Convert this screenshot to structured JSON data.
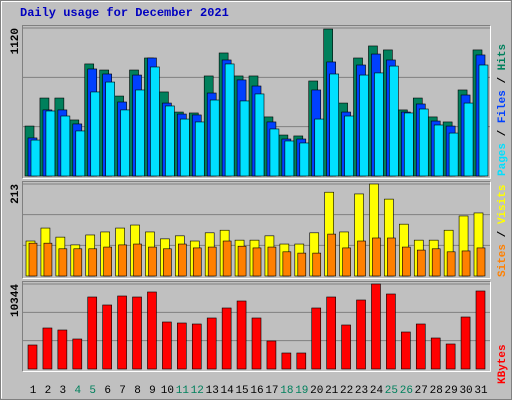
{
  "title": "Daily usage for December 2021",
  "legend_separator": " / ",
  "chart_data": [
    {
      "type": "bar",
      "ylim": [
        0,
        1120
      ],
      "yticks": [
        1120
      ],
      "grid": true,
      "series": [
        {
          "name": "Hits",
          "color": "#00805c",
          "values": [
            378,
            590,
            590,
            424,
            848,
            802,
            605,
            802,
            893,
            636,
            484,
            477,
            757,
            931,
            757,
            757,
            447,
            310,
            303,
            719,
            1112,
            552,
            893,
            984,
            954,
            500,
            590,
            447,
            409,
            651,
            954
          ]
        },
        {
          "name": "Files",
          "color": "#0040ff",
          "values": [
            288,
            500,
            500,
            394,
            810,
            772,
            560,
            764,
            893,
            552,
            469,
            462,
            628,
            878,
            727,
            681,
            409,
            280,
            280,
            651,
            863,
            484,
            840,
            923,
            878,
            484,
            545,
            416,
            378,
            613,
            916
          ]
        },
        {
          "name": "Pages",
          "color": "#00e0ff",
          "values": [
            272,
            492,
            454,
            341,
            636,
            711,
            500,
            651,
            825,
            530,
            431,
            409,
            575,
            848,
            568,
            621,
            356,
            265,
            250,
            431,
            772,
            454,
            764,
            780,
            832,
            477,
            507,
            386,
            325,
            552,
            840
          ]
        }
      ]
    },
    {
      "type": "bar",
      "ylim": [
        0,
        213
      ],
      "yticks": [
        213
      ],
      "grid": true,
      "series": [
        {
          "name": "Visits",
          "color": "#ffff00",
          "values": [
            81,
            111,
            90,
            72,
            95,
            102,
            111,
            118,
            102,
            86,
            93,
            81,
            100,
            106,
            83,
            83,
            93,
            74,
            74,
            100,
            194,
            102,
            190,
            213,
            178,
            120,
            83,
            83,
            106,
            139,
            146
          ]
        },
        {
          "name": "Sites",
          "color": "#ff8000",
          "values": [
            76,
            76,
            63,
            63,
            63,
            67,
            72,
            74,
            67,
            63,
            74,
            65,
            67,
            81,
            69,
            65,
            67,
            56,
            53,
            53,
            97,
            65,
            81,
            88,
            88,
            67,
            60,
            63,
            56,
            58,
            65
          ]
        }
      ]
    },
    {
      "type": "bar",
      "ylim": [
        0,
        10344
      ],
      "yticks": [
        10344
      ],
      "grid": true,
      "categories": [
        "1",
        "2",
        "3",
        "4",
        "5",
        "6",
        "7",
        "8",
        "9",
        "10",
        "11",
        "12",
        "13",
        "14",
        "15",
        "16",
        "17",
        "18",
        "19",
        "20",
        "21",
        "22",
        "23",
        "24",
        "25",
        "26",
        "27",
        "28",
        "29",
        "30",
        "31"
      ],
      "category_colors": [
        "#000000",
        "#000000",
        "#000000",
        "#00805c",
        "#00805c",
        "#000000",
        "#000000",
        "#000000",
        "#000000",
        "#000000",
        "#00805c",
        "#00805c",
        "#000000",
        "#000000",
        "#000000",
        "#000000",
        "#000000",
        "#00805c",
        "#00805c",
        "#000000",
        "#000000",
        "#000000",
        "#000000",
        "#000000",
        "#00805c",
        "#00805c",
        "#000000",
        "#000000",
        "#000000",
        "#000000",
        "#000000"
      ],
      "series": [
        {
          "name": "KBytes",
          "color": "#ff0000",
          "values": [
            2921,
            4990,
            4746,
            3651,
            8762,
            7789,
            8884,
            8762,
            9371,
            5720,
            5598,
            5476,
            6207,
            7424,
            8275,
            6207,
            3408,
            1947,
            1947,
            7424,
            8762,
            5355,
            8397,
            10344,
            9127,
            4503,
            5476,
            3773,
            3043,
            6328,
            9493
          ]
        }
      ]
    }
  ]
}
